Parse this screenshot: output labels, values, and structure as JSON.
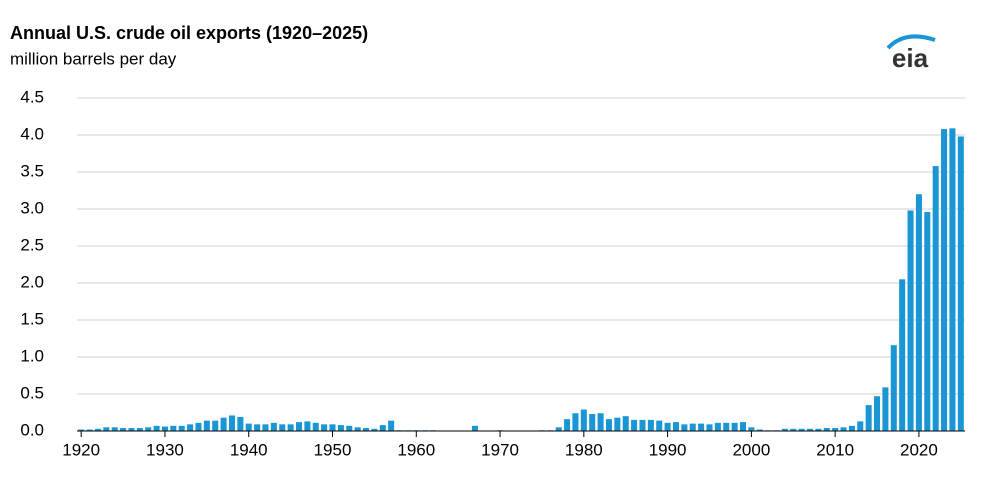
{
  "chart_data": {
    "type": "bar",
    "title": "Annual U.S. crude oil exports (1920–2025)",
    "subtitle": "million barrels per day",
    "logo": "eia",
    "color": "#1a96d4",
    "x": [
      1920,
      1921,
      1922,
      1923,
      1924,
      1925,
      1926,
      1927,
      1928,
      1929,
      1930,
      1931,
      1932,
      1933,
      1934,
      1935,
      1936,
      1937,
      1938,
      1939,
      1940,
      1941,
      1942,
      1943,
      1944,
      1945,
      1946,
      1947,
      1948,
      1949,
      1950,
      1951,
      1952,
      1953,
      1954,
      1955,
      1956,
      1957,
      1958,
      1959,
      1960,
      1961,
      1962,
      1963,
      1964,
      1965,
      1966,
      1967,
      1968,
      1969,
      1970,
      1971,
      1972,
      1973,
      1974,
      1975,
      1976,
      1977,
      1978,
      1979,
      1980,
      1981,
      1982,
      1983,
      1984,
      1985,
      1986,
      1987,
      1988,
      1989,
      1990,
      1991,
      1992,
      1993,
      1994,
      1995,
      1996,
      1997,
      1998,
      1999,
      2000,
      2001,
      2002,
      2003,
      2004,
      2005,
      2006,
      2007,
      2008,
      2009,
      2010,
      2011,
      2012,
      2013,
      2014,
      2015,
      2016,
      2017,
      2018,
      2019,
      2020,
      2021,
      2022,
      2023,
      2024,
      2025
    ],
    "values": [
      0.02,
      0.02,
      0.03,
      0.05,
      0.05,
      0.04,
      0.04,
      0.04,
      0.05,
      0.07,
      0.06,
      0.07,
      0.07,
      0.09,
      0.11,
      0.14,
      0.14,
      0.18,
      0.21,
      0.19,
      0.1,
      0.09,
      0.09,
      0.11,
      0.09,
      0.09,
      0.12,
      0.13,
      0.11,
      0.09,
      0.09,
      0.08,
      0.07,
      0.05,
      0.04,
      0.03,
      0.08,
      0.14,
      0.01,
      0.01,
      0.01,
      0.01,
      0.01,
      0.0,
      0.0,
      0.0,
      0.0,
      0.07,
      0.0,
      0.0,
      0.01,
      0.0,
      0.0,
      0.0,
      0.0,
      0.01,
      0.01,
      0.05,
      0.16,
      0.24,
      0.29,
      0.23,
      0.24,
      0.16,
      0.18,
      0.2,
      0.15,
      0.15,
      0.15,
      0.14,
      0.11,
      0.12,
      0.09,
      0.1,
      0.1,
      0.09,
      0.11,
      0.11,
      0.11,
      0.12,
      0.05,
      0.02,
      0.01,
      0.01,
      0.03,
      0.03,
      0.03,
      0.03,
      0.03,
      0.04,
      0.04,
      0.05,
      0.07,
      0.13,
      0.35,
      0.47,
      0.59,
      1.16,
      2.05,
      2.98,
      3.2,
      2.96,
      3.58,
      4.08,
      4.09,
      3.98
    ],
    "xlim": [
      1919.5,
      2025.5
    ],
    "xticks": [
      1920,
      1930,
      1940,
      1950,
      1960,
      1970,
      1980,
      1990,
      2000,
      2010,
      2020
    ],
    "ylim": [
      0,
      4.5
    ],
    "yticks": [
      {
        "value": 0,
        "label": "0.0"
      },
      {
        "value": 0.5,
        "label": "0.5"
      },
      {
        "value": 1,
        "label": "1.0"
      },
      {
        "value": 1.5,
        "label": "1.5"
      },
      {
        "value": 2,
        "label": "2.0"
      },
      {
        "value": 2.5,
        "label": "2.5"
      },
      {
        "value": 3,
        "label": "3.0"
      },
      {
        "value": 3.5,
        "label": "3.5"
      },
      {
        "value": 4,
        "label": "4.0"
      },
      {
        "value": 4.5,
        "label": "4.5"
      }
    ],
    "grid": true
  }
}
